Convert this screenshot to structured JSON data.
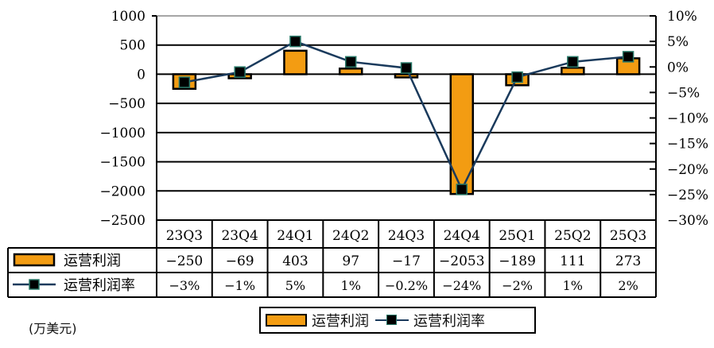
{
  "chart_data": {
    "type": "bar+line",
    "title": "",
    "unit_label": "(万美元)",
    "categories": [
      "23Q3",
      "23Q4",
      "24Q1",
      "24Q2",
      "24Q3",
      "24Q4",
      "25Q1",
      "25Q2",
      "25Q3"
    ],
    "series": [
      {
        "name": "运营利润",
        "type": "bar",
        "axis": "left",
        "color": "#f39c12",
        "values": [
          -250,
          -69,
          403,
          97,
          -17,
          -2053,
          -189,
          111,
          273
        ]
      },
      {
        "name": "运营利润率",
        "type": "line",
        "axis": "right",
        "color": "#1a3a5c",
        "values": [
          -3,
          -1,
          5,
          1,
          -0.2,
          -24,
          -2,
          1,
          2
        ],
        "labels": [
          "-3%",
          "-1%",
          "5%",
          "1%",
          "-0.2%",
          "-24%",
          "-2%",
          "1%",
          "2%"
        ]
      }
    ],
    "left_axis": {
      "ylim": [
        -2500,
        1000
      ],
      "ticks": [
        "1000",
        "500",
        "0",
        "-500",
        "-1000",
        "-1500",
        "-2000",
        "-2500"
      ]
    },
    "right_axis": {
      "ylim": [
        -30,
        10
      ],
      "ticks": [
        "10%",
        "5%",
        "0%",
        "-5%",
        "-10%",
        "-15%",
        "-20%",
        "-25%",
        "-30%"
      ]
    },
    "grid": true,
    "legend_position": "bottom",
    "data_table": true
  },
  "legend": {
    "bar_label": "运营利润",
    "line_label": "运营利润率"
  },
  "unit": "(万美元)"
}
